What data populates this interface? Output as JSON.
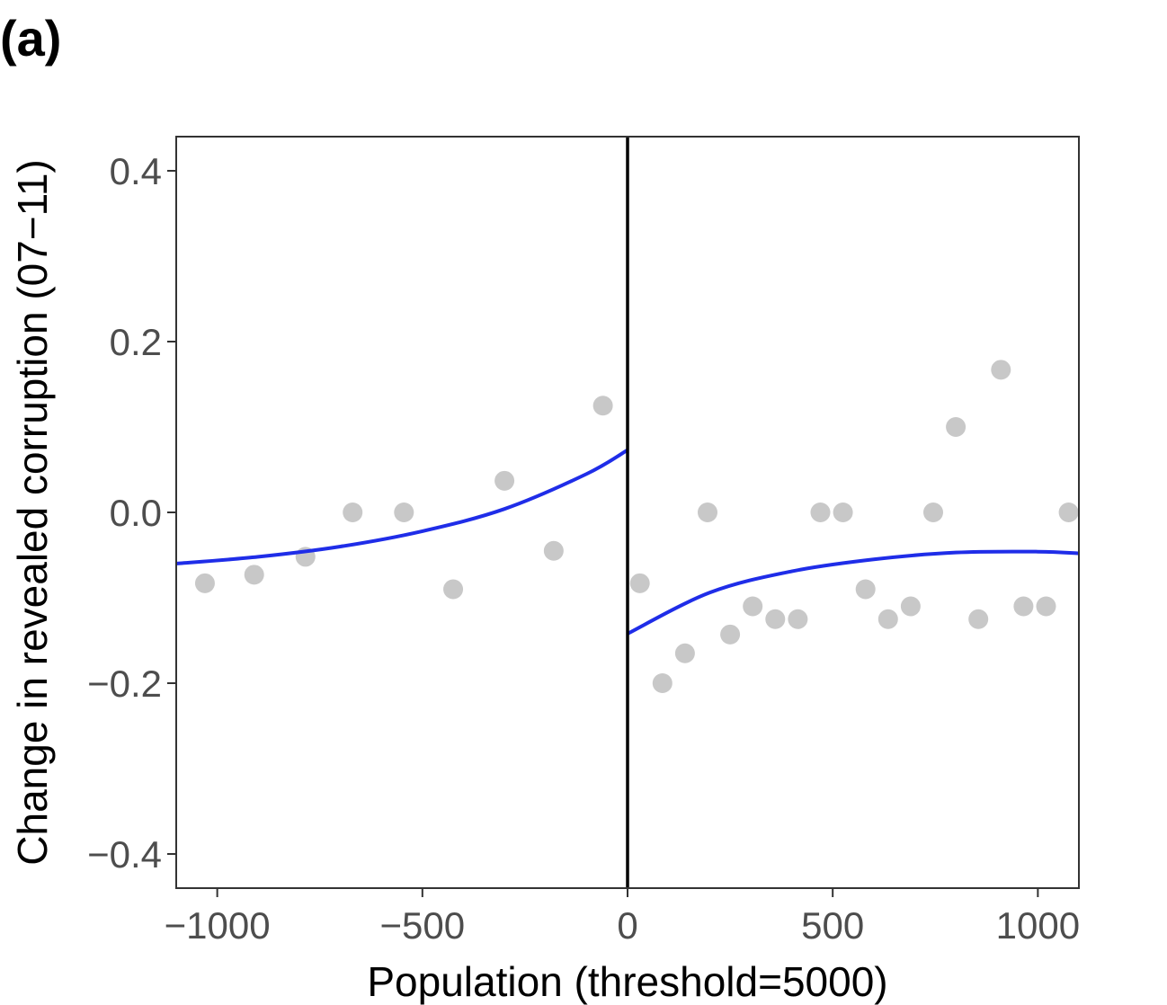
{
  "panel_label": "(a)",
  "chart_data": {
    "type": "scatter",
    "xlabel": "Population (threshold=5000)",
    "ylabel": "Change in revealed corruption (07−11)",
    "xlim": [
      -1100,
      1100
    ],
    "ylim": [
      -0.44,
      0.44
    ],
    "x_ticks": [
      -1000,
      -500,
      0,
      500,
      1000
    ],
    "x_tick_labels": [
      "−1000",
      "−500",
      "0",
      "500",
      "1000"
    ],
    "y_ticks": [
      0.4,
      0.2,
      0.0,
      -0.2,
      -0.4
    ],
    "y_tick_labels": [
      "0.4",
      "0.2",
      "0.0",
      "−0.2",
      "−0.4"
    ],
    "grid": false,
    "cutoff_x": 0,
    "point_color": "#c8c8c8",
    "fit_color": "#1f2de8",
    "cutoff_color": "#000000",
    "points": [
      {
        "x": -1030,
        "y": -0.083
      },
      {
        "x": -910,
        "y": -0.073
      },
      {
        "x": -785,
        "y": -0.052
      },
      {
        "x": -670,
        "y": 0.0
      },
      {
        "x": -545,
        "y": 0.0
      },
      {
        "x": -425,
        "y": -0.09
      },
      {
        "x": -300,
        "y": 0.037
      },
      {
        "x": -180,
        "y": -0.045
      },
      {
        "x": -60,
        "y": 0.125
      },
      {
        "x": 30,
        "y": -0.083
      },
      {
        "x": 85,
        "y": -0.2
      },
      {
        "x": 140,
        "y": -0.165
      },
      {
        "x": 195,
        "y": 0.0
      },
      {
        "x": 250,
        "y": -0.143
      },
      {
        "x": 305,
        "y": -0.11
      },
      {
        "x": 360,
        "y": -0.125
      },
      {
        "x": 415,
        "y": -0.125
      },
      {
        "x": 470,
        "y": 0.0
      },
      {
        "x": 525,
        "y": 0.0
      },
      {
        "x": 580,
        "y": -0.09
      },
      {
        "x": 635,
        "y": -0.125
      },
      {
        "x": 690,
        "y": -0.11
      },
      {
        "x": 745,
        "y": 0.0
      },
      {
        "x": 800,
        "y": 0.1
      },
      {
        "x": 855,
        "y": -0.125
      },
      {
        "x": 910,
        "y": 0.167
      },
      {
        "x": 965,
        "y": -0.11
      },
      {
        "x": 1020,
        "y": -0.11
      },
      {
        "x": 1075,
        "y": 0.0
      }
    ],
    "fits": [
      {
        "side": "left",
        "x": [
          -1100,
          -900,
          -700,
          -500,
          -300,
          -100,
          0
        ],
        "y": [
          -0.06,
          -0.052,
          -0.04,
          -0.022,
          0.004,
          0.045,
          0.073
        ]
      },
      {
        "side": "right",
        "x": [
          0,
          200,
          400,
          600,
          800,
          1000,
          1100
        ],
        "y": [
          -0.142,
          -0.094,
          -0.069,
          -0.055,
          -0.047,
          -0.046,
          -0.048
        ]
      }
    ]
  }
}
